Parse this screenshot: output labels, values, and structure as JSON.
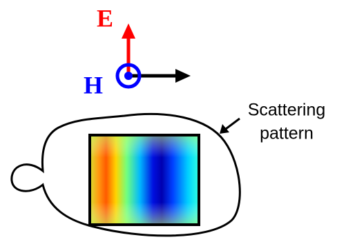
{
  "field_labels": {
    "electric": "E",
    "magnetic": "H"
  },
  "annotation": {
    "lines": [
      "Scattering",
      "pattern"
    ]
  }
}
